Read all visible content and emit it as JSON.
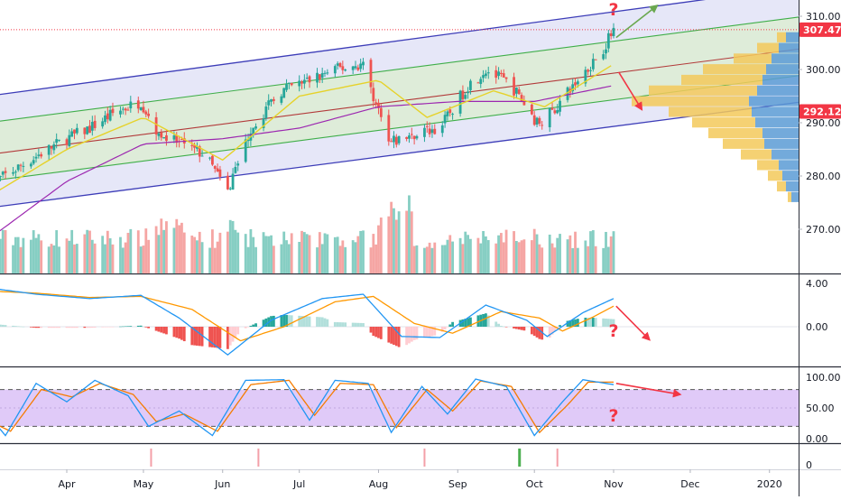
{
  "chart_data": [
    {
      "type": "candlestick",
      "pane": "price",
      "x_ticks": [
        "Apr",
        "May",
        "Jun",
        "Jul",
        "Aug",
        "Sep",
        "Oct",
        "Nov",
        "Dec",
        "2020"
      ],
      "y_ticks": [
        "310.00",
        "300.00",
        "290.00",
        "280.00",
        "270.00"
      ],
      "ylim": [
        262,
        313
      ],
      "price_labels": [
        {
          "text": "307.47",
          "value": 307.47,
          "color": "#f23645"
        },
        {
          "text": "292.12",
          "value": 292.12,
          "color": "#f23645"
        }
      ],
      "close_path": [
        {
          "d": "2019-03-01",
          "v": 278
        },
        {
          "d": "2019-03-11",
          "v": 281
        },
        {
          "d": "2019-03-21",
          "v": 284
        },
        {
          "d": "2019-04-01",
          "v": 287
        },
        {
          "d": "2019-04-10",
          "v": 289
        },
        {
          "d": "2019-04-20",
          "v": 292
        },
        {
          "d": "2019-04-30",
          "v": 294
        },
        {
          "d": "2019-05-07",
          "v": 288
        },
        {
          "d": "2019-05-15",
          "v": 286
        },
        {
          "d": "2019-05-25",
          "v": 284
        },
        {
          "d": "2019-06-03",
          "v": 277
        },
        {
          "d": "2019-06-12",
          "v": 289
        },
        {
          "d": "2019-06-24",
          "v": 296
        },
        {
          "d": "2019-07-05",
          "v": 298
        },
        {
          "d": "2019-07-15",
          "v": 300
        },
        {
          "d": "2019-07-26",
          "v": 301
        },
        {
          "d": "2019-08-05",
          "v": 286
        },
        {
          "d": "2019-08-15",
          "v": 288
        },
        {
          "d": "2019-08-25",
          "v": 289
        },
        {
          "d": "2019-09-05",
          "v": 297
        },
        {
          "d": "2019-09-12",
          "v": 300
        },
        {
          "d": "2019-09-22",
          "v": 297
        },
        {
          "d": "2019-10-02",
          "v": 290
        },
        {
          "d": "2019-10-08",
          "v": 292
        },
        {
          "d": "2019-10-18",
          "v": 298
        },
        {
          "d": "2019-10-28",
          "v": 304
        },
        {
          "d": "2019-11-01",
          "v": 307.47
        }
      ],
      "ma_fast": [
        {
          "d": "2019-03-01",
          "v": 276
        },
        {
          "d": "2019-04-01",
          "v": 285
        },
        {
          "d": "2019-05-01",
          "v": 291
        },
        {
          "d": "2019-06-01",
          "v": 283
        },
        {
          "d": "2019-07-01",
          "v": 295
        },
        {
          "d": "2019-08-01",
          "v": 298
        },
        {
          "d": "2019-08-20",
          "v": 291
        },
        {
          "d": "2019-09-15",
          "v": 296
        },
        {
          "d": "2019-10-05",
          "v": 293
        },
        {
          "d": "2019-11-01",
          "v": 301
        }
      ],
      "ma_slow": [
        {
          "d": "2019-03-01",
          "v": 268
        },
        {
          "d": "2019-04-01",
          "v": 279
        },
        {
          "d": "2019-05-01",
          "v": 286
        },
        {
          "d": "2019-06-01",
          "v": 287
        },
        {
          "d": "2019-07-01",
          "v": 289
        },
        {
          "d": "2019-08-01",
          "v": 293
        },
        {
          "d": "2019-09-01",
          "v": 294
        },
        {
          "d": "2019-10-01",
          "v": 294
        },
        {
          "d": "2019-11-01",
          "v": 297
        }
      ],
      "channel": {
        "outer_upper": [
          {
            "d": "2019-03-01",
            "v": 295
          },
          {
            "d": "2019-12-20",
            "v": 314
          }
        ],
        "inner_upper": [
          {
            "d": "2019-03-01",
            "v": 290
          },
          {
            "d": "2020-01-31",
            "v": 311
          }
        ],
        "median": [
          {
            "d": "2019-03-01",
            "v": 284
          },
          {
            "d": "2020-01-31",
            "v": 305
          }
        ],
        "inner_lower": [
          {
            "d": "2019-03-01",
            "v": 279
          },
          {
            "d": "2020-01-31",
            "v": 300
          }
        ],
        "outer_lower": [
          {
            "d": "2019-03-01",
            "v": 274
          },
          {
            "d": "2020-01-31",
            "v": 295
          }
        ]
      },
      "volume_profile": {
        "levels": [
          275,
          277,
          279,
          281,
          283,
          285,
          287,
          289,
          291,
          293,
          295,
          297,
          299,
          301,
          303,
          305
        ],
        "up": [
          8,
          14,
          18,
          22,
          30,
          38,
          40,
          48,
          52,
          55,
          46,
          40,
          36,
          30,
          22,
          14
        ],
        "down": [
          4,
          10,
          16,
          24,
          34,
          46,
          60,
          70,
          92,
          130,
          120,
          90,
          70,
          42,
          24,
          10
        ]
      },
      "annotations": [
        {
          "text": "?",
          "color": "#f23645",
          "d": "2019-11-01",
          "v": 311.5
        },
        {
          "text": "?",
          "color": "#f23645",
          "d": "2019-11-01",
          "v": -0.25,
          "pane": "macd"
        },
        {
          "text": "?",
          "color": "#f23645",
          "d": "2019-11-01",
          "v": 40,
          "pane": "stoch"
        }
      ],
      "arrows": [
        {
          "color": "#6aa84f",
          "from": {
            "d": "2019-11-02",
            "v": 306
          },
          "to": {
            "d": "2019-11-18",
            "v": 312
          }
        },
        {
          "color": "#f23645",
          "from": {
            "d": "2019-11-03",
            "v": 299.5
          },
          "to": {
            "d": "2019-11-12",
            "v": 292.5
          }
        }
      ]
    },
    {
      "type": "bar",
      "pane": "volume",
      "series_colors": {
        "up": "#26a69a",
        "down": "#ef5350"
      }
    },
    {
      "type": "line",
      "pane": "macd",
      "y_ticks": [
        "4.00",
        "0.00"
      ],
      "ylim": [
        -3.5,
        4.3
      ],
      "macd": [
        {
          "d": "2019-03-01",
          "v": 3.6
        },
        {
          "d": "2019-03-20",
          "v": 3.0
        },
        {
          "d": "2019-04-10",
          "v": 2.6
        },
        {
          "d": "2019-04-30",
          "v": 2.9
        },
        {
          "d": "2019-05-15",
          "v": 0.8
        },
        {
          "d": "2019-06-03",
          "v": -2.6
        },
        {
          "d": "2019-06-20",
          "v": 0.6
        },
        {
          "d": "2019-07-10",
          "v": 2.6
        },
        {
          "d": "2019-07-26",
          "v": 3.0
        },
        {
          "d": "2019-08-10",
          "v": -0.9
        },
        {
          "d": "2019-08-25",
          "v": -1.0
        },
        {
          "d": "2019-09-12",
          "v": 2.0
        },
        {
          "d": "2019-09-28",
          "v": 0.6
        },
        {
          "d": "2019-10-06",
          "v": -0.9
        },
        {
          "d": "2019-10-20",
          "v": 1.3
        },
        {
          "d": "2019-11-01",
          "v": 2.6
        }
      ],
      "signal": [
        {
          "d": "2019-03-01",
          "v": 3.3
        },
        {
          "d": "2019-03-20",
          "v": 3.1
        },
        {
          "d": "2019-04-10",
          "v": 2.7
        },
        {
          "d": "2019-04-30",
          "v": 2.8
        },
        {
          "d": "2019-05-20",
          "v": 1.6
        },
        {
          "d": "2019-06-08",
          "v": -1.3
        },
        {
          "d": "2019-06-25",
          "v": 0.0
        },
        {
          "d": "2019-07-15",
          "v": 2.3
        },
        {
          "d": "2019-07-30",
          "v": 2.8
        },
        {
          "d": "2019-08-15",
          "v": 0.3
        },
        {
          "d": "2019-08-30",
          "v": -0.6
        },
        {
          "d": "2019-09-18",
          "v": 1.4
        },
        {
          "d": "2019-10-03",
          "v": 0.8
        },
        {
          "d": "2019-10-12",
          "v": -0.4
        },
        {
          "d": "2019-10-24",
          "v": 0.9
        },
        {
          "d": "2019-11-01",
          "v": 1.9
        }
      ],
      "arrows": [
        {
          "color": "#f23645",
          "from": {
            "d": "2019-11-02",
            "v": 1.9
          },
          "to": {
            "d": "2019-11-15",
            "v": -1.2
          }
        }
      ]
    },
    {
      "type": "line",
      "pane": "stoch",
      "y_ticks": [
        "100.00",
        "50.00",
        "0.00"
      ],
      "ylim": [
        -5,
        105
      ],
      "bands": [
        20,
        80
      ],
      "band_fill": "#d5b8f5",
      "k": [
        {
          "d": "2019-03-01",
          "v": 40
        },
        {
          "d": "2019-03-08",
          "v": 5
        },
        {
          "d": "2019-03-20",
          "v": 90
        },
        {
          "d": "2019-04-01",
          "v": 60
        },
        {
          "d": "2019-04-12",
          "v": 95
        },
        {
          "d": "2019-04-25",
          "v": 70
        },
        {
          "d": "2019-05-03",
          "v": 20
        },
        {
          "d": "2019-05-15",
          "v": 45
        },
        {
          "d": "2019-05-28",
          "v": 5
        },
        {
          "d": "2019-06-10",
          "v": 95
        },
        {
          "d": "2019-06-25",
          "v": 96
        },
        {
          "d": "2019-07-05",
          "v": 30
        },
        {
          "d": "2019-07-15",
          "v": 95
        },
        {
          "d": "2019-07-28",
          "v": 90
        },
        {
          "d": "2019-08-06",
          "v": 10
        },
        {
          "d": "2019-08-18",
          "v": 85
        },
        {
          "d": "2019-08-28",
          "v": 40
        },
        {
          "d": "2019-09-08",
          "v": 97
        },
        {
          "d": "2019-09-20",
          "v": 85
        },
        {
          "d": "2019-10-01",
          "v": 5
        },
        {
          "d": "2019-10-12",
          "v": 60
        },
        {
          "d": "2019-10-20",
          "v": 96
        },
        {
          "d": "2019-11-01",
          "v": 88
        }
      ],
      "d": [
        {
          "d": "2019-03-01",
          "v": 30
        },
        {
          "d": "2019-03-10",
          "v": 12
        },
        {
          "d": "2019-03-22",
          "v": 80
        },
        {
          "d": "2019-04-03",
          "v": 68
        },
        {
          "d": "2019-04-14",
          "v": 90
        },
        {
          "d": "2019-04-27",
          "v": 72
        },
        {
          "d": "2019-05-06",
          "v": 28
        },
        {
          "d": "2019-05-17",
          "v": 40
        },
        {
          "d": "2019-05-30",
          "v": 12
        },
        {
          "d": "2019-06-12",
          "v": 88
        },
        {
          "d": "2019-06-27",
          "v": 95
        },
        {
          "d": "2019-07-07",
          "v": 38
        },
        {
          "d": "2019-07-17",
          "v": 90
        },
        {
          "d": "2019-07-30",
          "v": 88
        },
        {
          "d": "2019-08-08",
          "v": 18
        },
        {
          "d": "2019-08-20",
          "v": 80
        },
        {
          "d": "2019-08-30",
          "v": 45
        },
        {
          "d": "2019-09-10",
          "v": 94
        },
        {
          "d": "2019-09-22",
          "v": 85
        },
        {
          "d": "2019-10-03",
          "v": 10
        },
        {
          "d": "2019-10-14",
          "v": 55
        },
        {
          "d": "2019-10-22",
          "v": 92
        },
        {
          "d": "2019-11-01",
          "v": 92
        }
      ],
      "arrows": [
        {
          "color": "#f23645",
          "from": {
            "d": "2019-11-02",
            "v": 90
          },
          "to": {
            "d": "2019-11-27",
            "v": 72
          }
        }
      ]
    },
    {
      "type": "event",
      "pane": "events",
      "y_ticks": [
        "0"
      ],
      "events": [
        {
          "d": "2019-05-04",
          "color": "#f4a0a8"
        },
        {
          "d": "2019-06-15",
          "color": "#f4a0a8"
        },
        {
          "d": "2019-08-19",
          "color": "#f4a0a8"
        },
        {
          "d": "2019-09-25",
          "color": "#4caf50"
        },
        {
          "d": "2019-10-10",
          "color": "#f4a0a8"
        }
      ]
    }
  ]
}
